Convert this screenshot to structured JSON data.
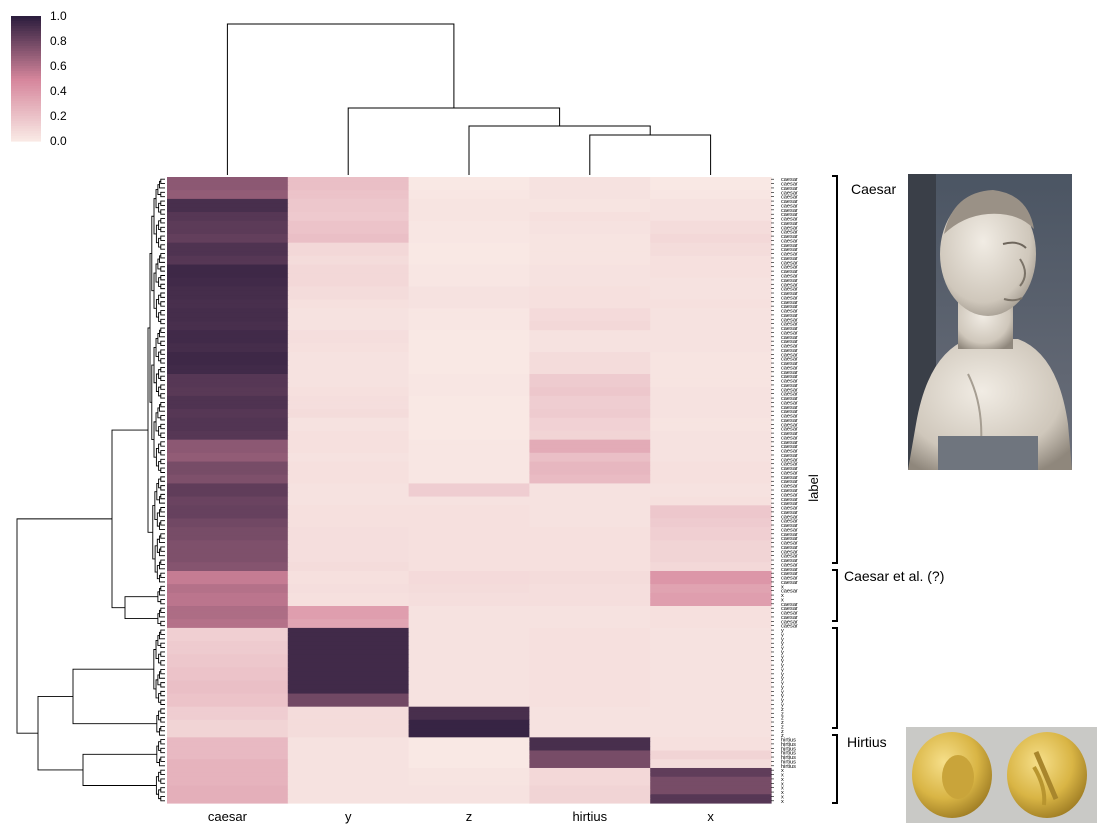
{
  "chart_data": {
    "type": "heatmap",
    "title": "",
    "xlabel": "",
    "ylabel": "label",
    "columns": [
      "caesar",
      "y",
      "z",
      "hirtius",
      "x"
    ],
    "row_labels": [
      "caesar",
      "caesar",
      "caesar",
      "caesar",
      "caesar",
      "caesar",
      "caesar",
      "caesar",
      "caesar",
      "caesar",
      "caesar",
      "caesar",
      "caesar",
      "caesar",
      "caesar",
      "caesar",
      "caesar",
      "caesar",
      "caesar",
      "caesar",
      "caesar",
      "caesar",
      "caesar",
      "caesar",
      "caesar",
      "caesar",
      "caesar",
      "caesar",
      "caesar",
      "caesar",
      "caesar",
      "caesar",
      "caesar",
      "caesar",
      "caesar",
      "caesar",
      "caesar",
      "caesar",
      "caesar",
      "caesar",
      "caesar",
      "caesar",
      "caesar",
      "caesar",
      "caesar",
      "caesar",
      "caesar",
      "caesar",
      "caesar",
      "caesar",
      "caesar",
      "caesar",
      "caesar",
      "caesar",
      "caesar",
      "caesar",
      "caesar",
      "caesar",
      "caesar",
      "caesar",
      "caesar",
      "caesar",
      "caesar",
      "caesar",
      "caesar",
      "caesar",
      "caesar",
      "caesar",
      "caesar",
      "caesar",
      "caesar",
      "caesar",
      "caesar",
      "caesar",
      "caesar",
      "caesar",
      "caesar",
      "caesar",
      "caesar",
      "caesar",
      "caesar",
      "caesar",
      "caesar",
      "caesar",
      "caesar",
      "caesar",
      "caesar",
      "caesar",
      "caesar",
      "caesar",
      "caesar",
      "caesar",
      "caesar",
      "x",
      "caesar",
      "x",
      "x",
      "caesar",
      "caesar",
      "caesar",
      "caesar",
      "caesar",
      "caesar",
      "y",
      "y",
      "y",
      "y",
      "y",
      "y",
      "y",
      "y",
      "y",
      "y",
      "y",
      "y",
      "y",
      "y",
      "y",
      "y",
      "y",
      "y",
      "z",
      "z",
      "z",
      "z",
      "z",
      "z",
      "z",
      "hirtius",
      "hirtius",
      "hirtius",
      "hirtius",
      "hirtius",
      "hirtius",
      "hirtius",
      "x",
      "x",
      "x",
      "x",
      "x",
      "x",
      "x",
      "x"
    ],
    "values": [
      [
        0.72,
        0.22,
        0.02,
        0.05,
        0.02
      ],
      [
        0.72,
        0.22,
        0.02,
        0.05,
        0.02
      ],
      [
        0.72,
        0.22,
        0.02,
        0.05,
        0.02
      ],
      [
        0.7,
        0.2,
        0.03,
        0.05,
        0.03
      ],
      [
        0.7,
        0.2,
        0.03,
        0.05,
        0.03
      ],
      [
        0.92,
        0.18,
        0.04,
        0.04,
        0.05
      ],
      [
        0.92,
        0.18,
        0.04,
        0.04,
        0.05
      ],
      [
        0.92,
        0.18,
        0.04,
        0.04,
        0.05
      ],
      [
        0.88,
        0.17,
        0.04,
        0.06,
        0.05
      ],
      [
        0.88,
        0.17,
        0.04,
        0.06,
        0.05
      ],
      [
        0.86,
        0.2,
        0.03,
        0.05,
        0.08
      ],
      [
        0.86,
        0.2,
        0.03,
        0.05,
        0.08
      ],
      [
        0.86,
        0.2,
        0.03,
        0.05,
        0.08
      ],
      [
        0.84,
        0.22,
        0.03,
        0.04,
        0.1
      ],
      [
        0.84,
        0.22,
        0.03,
        0.04,
        0.1
      ],
      [
        0.9,
        0.1,
        0.02,
        0.04,
        0.08
      ],
      [
        0.9,
        0.1,
        0.02,
        0.04,
        0.08
      ],
      [
        0.9,
        0.1,
        0.02,
        0.04,
        0.08
      ],
      [
        0.88,
        0.08,
        0.02,
        0.04,
        0.06
      ],
      [
        0.88,
        0.08,
        0.02,
        0.04,
        0.06
      ],
      [
        0.95,
        0.1,
        0.03,
        0.05,
        0.06
      ],
      [
        0.95,
        0.1,
        0.03,
        0.05,
        0.06
      ],
      [
        0.95,
        0.1,
        0.03,
        0.05,
        0.06
      ],
      [
        0.94,
        0.1,
        0.03,
        0.05,
        0.05
      ],
      [
        0.94,
        0.1,
        0.03,
        0.05,
        0.05
      ],
      [
        0.93,
        0.08,
        0.05,
        0.06,
        0.05
      ],
      [
        0.93,
        0.08,
        0.05,
        0.06,
        0.05
      ],
      [
        0.93,
        0.08,
        0.05,
        0.06,
        0.05
      ],
      [
        0.92,
        0.06,
        0.05,
        0.06,
        0.06
      ],
      [
        0.92,
        0.06,
        0.05,
        0.06,
        0.06
      ],
      [
        0.93,
        0.05,
        0.03,
        0.09,
        0.05
      ],
      [
        0.93,
        0.05,
        0.03,
        0.09,
        0.05
      ],
      [
        0.93,
        0.05,
        0.03,
        0.09,
        0.05
      ],
      [
        0.92,
        0.05,
        0.03,
        0.1,
        0.05
      ],
      [
        0.92,
        0.05,
        0.03,
        0.1,
        0.05
      ],
      [
        0.94,
        0.07,
        0.02,
        0.05,
        0.05
      ],
      [
        0.94,
        0.07,
        0.02,
        0.05,
        0.05
      ],
      [
        0.94,
        0.07,
        0.02,
        0.05,
        0.05
      ],
      [
        0.93,
        0.06,
        0.02,
        0.05,
        0.05
      ],
      [
        0.93,
        0.06,
        0.02,
        0.05,
        0.05
      ],
      [
        0.95,
        0.05,
        0.02,
        0.08,
        0.04
      ],
      [
        0.95,
        0.05,
        0.02,
        0.08,
        0.04
      ],
      [
        0.95,
        0.05,
        0.02,
        0.08,
        0.04
      ],
      [
        0.94,
        0.05,
        0.02,
        0.08,
        0.04
      ],
      [
        0.94,
        0.05,
        0.02,
        0.08,
        0.04
      ],
      [
        0.88,
        0.05,
        0.03,
        0.16,
        0.04
      ],
      [
        0.88,
        0.05,
        0.03,
        0.16,
        0.04
      ],
      [
        0.88,
        0.05,
        0.03,
        0.16,
        0.04
      ],
      [
        0.87,
        0.06,
        0.03,
        0.18,
        0.05
      ],
      [
        0.87,
        0.06,
        0.03,
        0.18,
        0.05
      ],
      [
        0.9,
        0.07,
        0.02,
        0.15,
        0.05
      ],
      [
        0.9,
        0.07,
        0.02,
        0.15,
        0.05
      ],
      [
        0.9,
        0.07,
        0.02,
        0.15,
        0.05
      ],
      [
        0.88,
        0.08,
        0.02,
        0.16,
        0.05
      ],
      [
        0.88,
        0.08,
        0.02,
        0.16,
        0.05
      ],
      [
        0.89,
        0.05,
        0.02,
        0.13,
        0.04
      ],
      [
        0.89,
        0.05,
        0.02,
        0.13,
        0.04
      ],
      [
        0.89,
        0.05,
        0.02,
        0.13,
        0.04
      ],
      [
        0.88,
        0.06,
        0.02,
        0.12,
        0.05
      ],
      [
        0.88,
        0.06,
        0.02,
        0.12,
        0.05
      ],
      [
        0.72,
        0.06,
        0.03,
        0.32,
        0.05
      ],
      [
        0.72,
        0.06,
        0.03,
        0.32,
        0.05
      ],
      [
        0.72,
        0.06,
        0.03,
        0.32,
        0.05
      ],
      [
        0.7,
        0.05,
        0.03,
        0.22,
        0.05
      ],
      [
        0.7,
        0.05,
        0.03,
        0.22,
        0.05
      ],
      [
        0.78,
        0.06,
        0.03,
        0.26,
        0.06
      ],
      [
        0.78,
        0.06,
        0.03,
        0.26,
        0.06
      ],
      [
        0.78,
        0.06,
        0.03,
        0.26,
        0.06
      ],
      [
        0.76,
        0.06,
        0.03,
        0.24,
        0.06
      ],
      [
        0.76,
        0.06,
        0.03,
        0.24,
        0.06
      ],
      [
        0.85,
        0.05,
        0.15,
        0.05,
        0.05
      ],
      [
        0.85,
        0.05,
        0.15,
        0.05,
        0.05
      ],
      [
        0.85,
        0.05,
        0.15,
        0.05,
        0.05
      ],
      [
        0.82,
        0.05,
        0.05,
        0.05,
        0.06
      ],
      [
        0.82,
        0.05,
        0.05,
        0.05,
        0.06
      ],
      [
        0.83,
        0.06,
        0.06,
        0.05,
        0.18
      ],
      [
        0.83,
        0.06,
        0.06,
        0.05,
        0.18
      ],
      [
        0.83,
        0.06,
        0.06,
        0.05,
        0.18
      ],
      [
        0.8,
        0.06,
        0.06,
        0.05,
        0.16
      ],
      [
        0.8,
        0.06,
        0.06,
        0.05,
        0.16
      ],
      [
        0.78,
        0.07,
        0.06,
        0.06,
        0.14
      ],
      [
        0.78,
        0.07,
        0.06,
        0.06,
        0.14
      ],
      [
        0.78,
        0.07,
        0.06,
        0.06,
        0.14
      ],
      [
        0.76,
        0.07,
        0.06,
        0.06,
        0.12
      ],
      [
        0.76,
        0.07,
        0.06,
        0.06,
        0.12
      ],
      [
        0.76,
        0.07,
        0.06,
        0.06,
        0.12
      ],
      [
        0.76,
        0.07,
        0.06,
        0.06,
        0.12
      ],
      [
        0.76,
        0.07,
        0.06,
        0.06,
        0.12
      ],
      [
        0.74,
        0.08,
        0.06,
        0.06,
        0.1
      ],
      [
        0.74,
        0.08,
        0.06,
        0.06,
        0.1
      ],
      [
        0.55,
        0.06,
        0.09,
        0.08,
        0.42
      ],
      [
        0.55,
        0.06,
        0.09,
        0.08,
        0.42
      ],
      [
        0.55,
        0.06,
        0.09,
        0.08,
        0.42
      ],
      [
        0.6,
        0.07,
        0.08,
        0.07,
        0.36
      ],
      [
        0.6,
        0.07,
        0.08,
        0.07,
        0.36
      ],
      [
        0.58,
        0.06,
        0.07,
        0.07,
        0.38
      ],
      [
        0.58,
        0.06,
        0.07,
        0.07,
        0.38
      ],
      [
        0.58,
        0.06,
        0.07,
        0.07,
        0.38
      ],
      [
        0.62,
        0.38,
        0.05,
        0.05,
        0.06
      ],
      [
        0.62,
        0.38,
        0.05,
        0.05,
        0.06
      ],
      [
        0.62,
        0.38,
        0.05,
        0.05,
        0.06
      ],
      [
        0.6,
        0.35,
        0.05,
        0.05,
        0.06
      ],
      [
        0.6,
        0.35,
        0.05,
        0.05,
        0.06
      ],
      [
        0.14,
        0.94,
        0.05,
        0.06,
        0.05
      ],
      [
        0.14,
        0.94,
        0.05,
        0.06,
        0.05
      ],
      [
        0.14,
        0.94,
        0.05,
        0.06,
        0.05
      ],
      [
        0.16,
        0.94,
        0.05,
        0.06,
        0.05
      ],
      [
        0.16,
        0.94,
        0.05,
        0.06,
        0.05
      ],
      [
        0.16,
        0.94,
        0.05,
        0.06,
        0.05
      ],
      [
        0.18,
        0.94,
        0.05,
        0.06,
        0.05
      ],
      [
        0.18,
        0.94,
        0.05,
        0.06,
        0.05
      ],
      [
        0.18,
        0.94,
        0.05,
        0.06,
        0.05
      ],
      [
        0.2,
        0.94,
        0.05,
        0.06,
        0.05
      ],
      [
        0.2,
        0.94,
        0.05,
        0.06,
        0.05
      ],
      [
        0.2,
        0.94,
        0.05,
        0.06,
        0.05
      ],
      [
        0.22,
        0.94,
        0.05,
        0.06,
        0.05
      ],
      [
        0.22,
        0.94,
        0.05,
        0.06,
        0.05
      ],
      [
        0.22,
        0.94,
        0.05,
        0.06,
        0.05
      ],
      [
        0.2,
        0.8,
        0.05,
        0.06,
        0.05
      ],
      [
        0.2,
        0.8,
        0.05,
        0.06,
        0.05
      ],
      [
        0.2,
        0.8,
        0.05,
        0.06,
        0.05
      ],
      [
        0.15,
        0.08,
        0.92,
        0.05,
        0.05
      ],
      [
        0.15,
        0.08,
        0.92,
        0.05,
        0.05
      ],
      [
        0.15,
        0.08,
        0.92,
        0.05,
        0.05
      ],
      [
        0.12,
        0.08,
        0.97,
        0.05,
        0.05
      ],
      [
        0.12,
        0.08,
        0.97,
        0.05,
        0.05
      ],
      [
        0.12,
        0.08,
        0.97,
        0.05,
        0.05
      ],
      [
        0.12,
        0.08,
        0.97,
        0.05,
        0.05
      ],
      [
        0.25,
        0.05,
        0.02,
        0.92,
        0.06
      ],
      [
        0.25,
        0.05,
        0.02,
        0.92,
        0.06
      ],
      [
        0.25,
        0.05,
        0.02,
        0.92,
        0.06
      ],
      [
        0.25,
        0.05,
        0.02,
        0.78,
        0.12
      ],
      [
        0.25,
        0.05,
        0.02,
        0.78,
        0.12
      ],
      [
        0.28,
        0.05,
        0.02,
        0.78,
        0.08
      ],
      [
        0.28,
        0.05,
        0.02,
        0.78,
        0.08
      ],
      [
        0.28,
        0.05,
        0.04,
        0.1,
        0.85
      ],
      [
        0.28,
        0.05,
        0.04,
        0.1,
        0.85
      ],
      [
        0.28,
        0.05,
        0.04,
        0.1,
        0.78
      ],
      [
        0.28,
        0.05,
        0.04,
        0.1,
        0.78
      ],
      [
        0.3,
        0.05,
        0.05,
        0.12,
        0.78
      ],
      [
        0.3,
        0.05,
        0.05,
        0.12,
        0.78
      ],
      [
        0.3,
        0.05,
        0.05,
        0.12,
        0.88
      ],
      [
        0.3,
        0.05,
        0.05,
        0.12,
        0.88
      ]
    ],
    "colorbar": {
      "min": 0.0,
      "max": 1.0,
      "ticks": [
        "0.0",
        "0.2",
        "0.4",
        "0.6",
        "0.8",
        "1.0"
      ]
    },
    "colormap": {
      "low": "#faece7",
      "mid": "#d6869c",
      "high": "#2d1e3e"
    },
    "dendrogram": {
      "rows": true,
      "columns": true
    }
  },
  "annotations": {
    "caesar_label": "Caesar",
    "caesar_etal_label": "Caesar et al. (?)",
    "hirtius_label": "Hirtius",
    "caesar_image": "caesar-bust-photo",
    "hirtius_image": "gold-coin-photo"
  }
}
